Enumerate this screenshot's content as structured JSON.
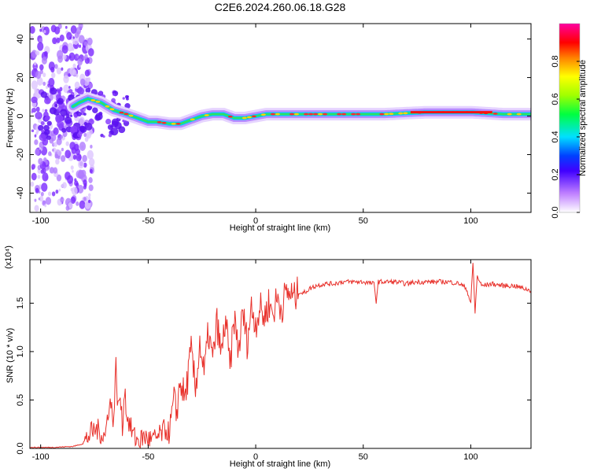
{
  "title": "C2E6.2024.260.06.18.G28",
  "colors": {
    "snr_line": "#e8302a",
    "frame": "#000000",
    "background": "#ffffff"
  },
  "chart_data": [
    {
      "type": "heatmap",
      "name": "spectrogram",
      "xlabel": "Height of straight line (km)",
      "ylabel": "Frequency (Hz)",
      "xlim": [
        -105,
        128
      ],
      "ylim": [
        -50,
        48
      ],
      "x_ticks": [
        "-100",
        "-50",
        "0",
        "50",
        "100"
      ],
      "y_ticks": [
        "40",
        "20",
        "0",
        "-20",
        "-40"
      ],
      "ridge": {
        "x": [
          -105,
          -95,
          -88,
          -82,
          -78,
          -72,
          -66,
          -60,
          -55,
          -50,
          -46,
          -40,
          -35,
          -30,
          -25,
          -20,
          -15,
          -10,
          -5,
          0,
          5,
          10,
          20,
          40,
          60,
          80,
          100,
          115,
          128
        ],
        "y": [
          3,
          4,
          3,
          7,
          9,
          7,
          3,
          1,
          -1,
          -3,
          -3,
          -4,
          -4,
          -2,
          0,
          1,
          1,
          -1,
          -1,
          0,
          1,
          1,
          1,
          1,
          1,
          2,
          2,
          1,
          1
        ]
      },
      "colorbar": {
        "label": "Normalized spectral amplitude",
        "range": [
          0.0,
          1.0
        ],
        "ticks": [
          "0.0",
          "0.2",
          "0.4",
          "0.6",
          "0.8"
        ]
      }
    },
    {
      "type": "line",
      "name": "snr",
      "xlabel": "Height of straight line (km)",
      "ylabel": "SNR (10 * v/v)",
      "scale_label": "(x10⁴)",
      "xlim": [
        -105,
        128
      ],
      "ylim": [
        0,
        1.95
      ],
      "x_ticks": [
        "-100",
        "-50",
        "0",
        "50",
        "100"
      ],
      "y_ticks": [
        "0.0",
        "0.5",
        "1.0",
        "1.5"
      ],
      "series": [
        {
          "x": [
            -105,
            -95,
            -85,
            -80,
            -77,
            -74,
            -70,
            -68,
            -66,
            -65,
            -64,
            -63,
            -62,
            -61,
            -60,
            -58,
            -56,
            -54,
            -52,
            -50,
            -48,
            -45,
            -42,
            -40,
            -38,
            -37,
            -35,
            -33,
            -30,
            -28,
            -26,
            -24,
            -22,
            -20,
            -18,
            -16,
            -14,
            -12,
            -10,
            -8,
            -6,
            -4,
            -2,
            0,
            2,
            4,
            6,
            8,
            10,
            12,
            14,
            16,
            18,
            20,
            22,
            25,
            28,
            32,
            36,
            40,
            45,
            50,
            55,
            56,
            57,
            60,
            65,
            70,
            75,
            80,
            85,
            90,
            95,
            98,
            100,
            101,
            102,
            103,
            105,
            110,
            115,
            120,
            125,
            128
          ],
          "y": [
            0.01,
            0.01,
            0.02,
            0.05,
            0.15,
            0.2,
            0.12,
            0.5,
            0.3,
            0.85,
            0.4,
            0.55,
            0.2,
            0.65,
            0.35,
            0.2,
            0.1,
            0.08,
            0.12,
            0.1,
            0.08,
            0.12,
            0.2,
            0.15,
            0.5,
            0.35,
            0.7,
            0.5,
            1.0,
            0.6,
            1.1,
            0.75,
            1.2,
            0.9,
            1.3,
            0.95,
            1.35,
            0.8,
            1.35,
            1.0,
            1.4,
            1.1,
            1.45,
            1.3,
            1.45,
            1.35,
            1.5,
            1.4,
            1.55,
            1.45,
            1.6,
            1.6,
            1.55,
            1.62,
            1.6,
            1.65,
            1.68,
            1.7,
            1.7,
            1.72,
            1.72,
            1.72,
            1.7,
            1.52,
            1.72,
            1.72,
            1.72,
            1.7,
            1.72,
            1.72,
            1.72,
            1.72,
            1.7,
            1.65,
            1.5,
            1.92,
            1.4,
            1.78,
            1.68,
            1.7,
            1.68,
            1.68,
            1.65,
            1.63
          ]
        }
      ]
    }
  ]
}
